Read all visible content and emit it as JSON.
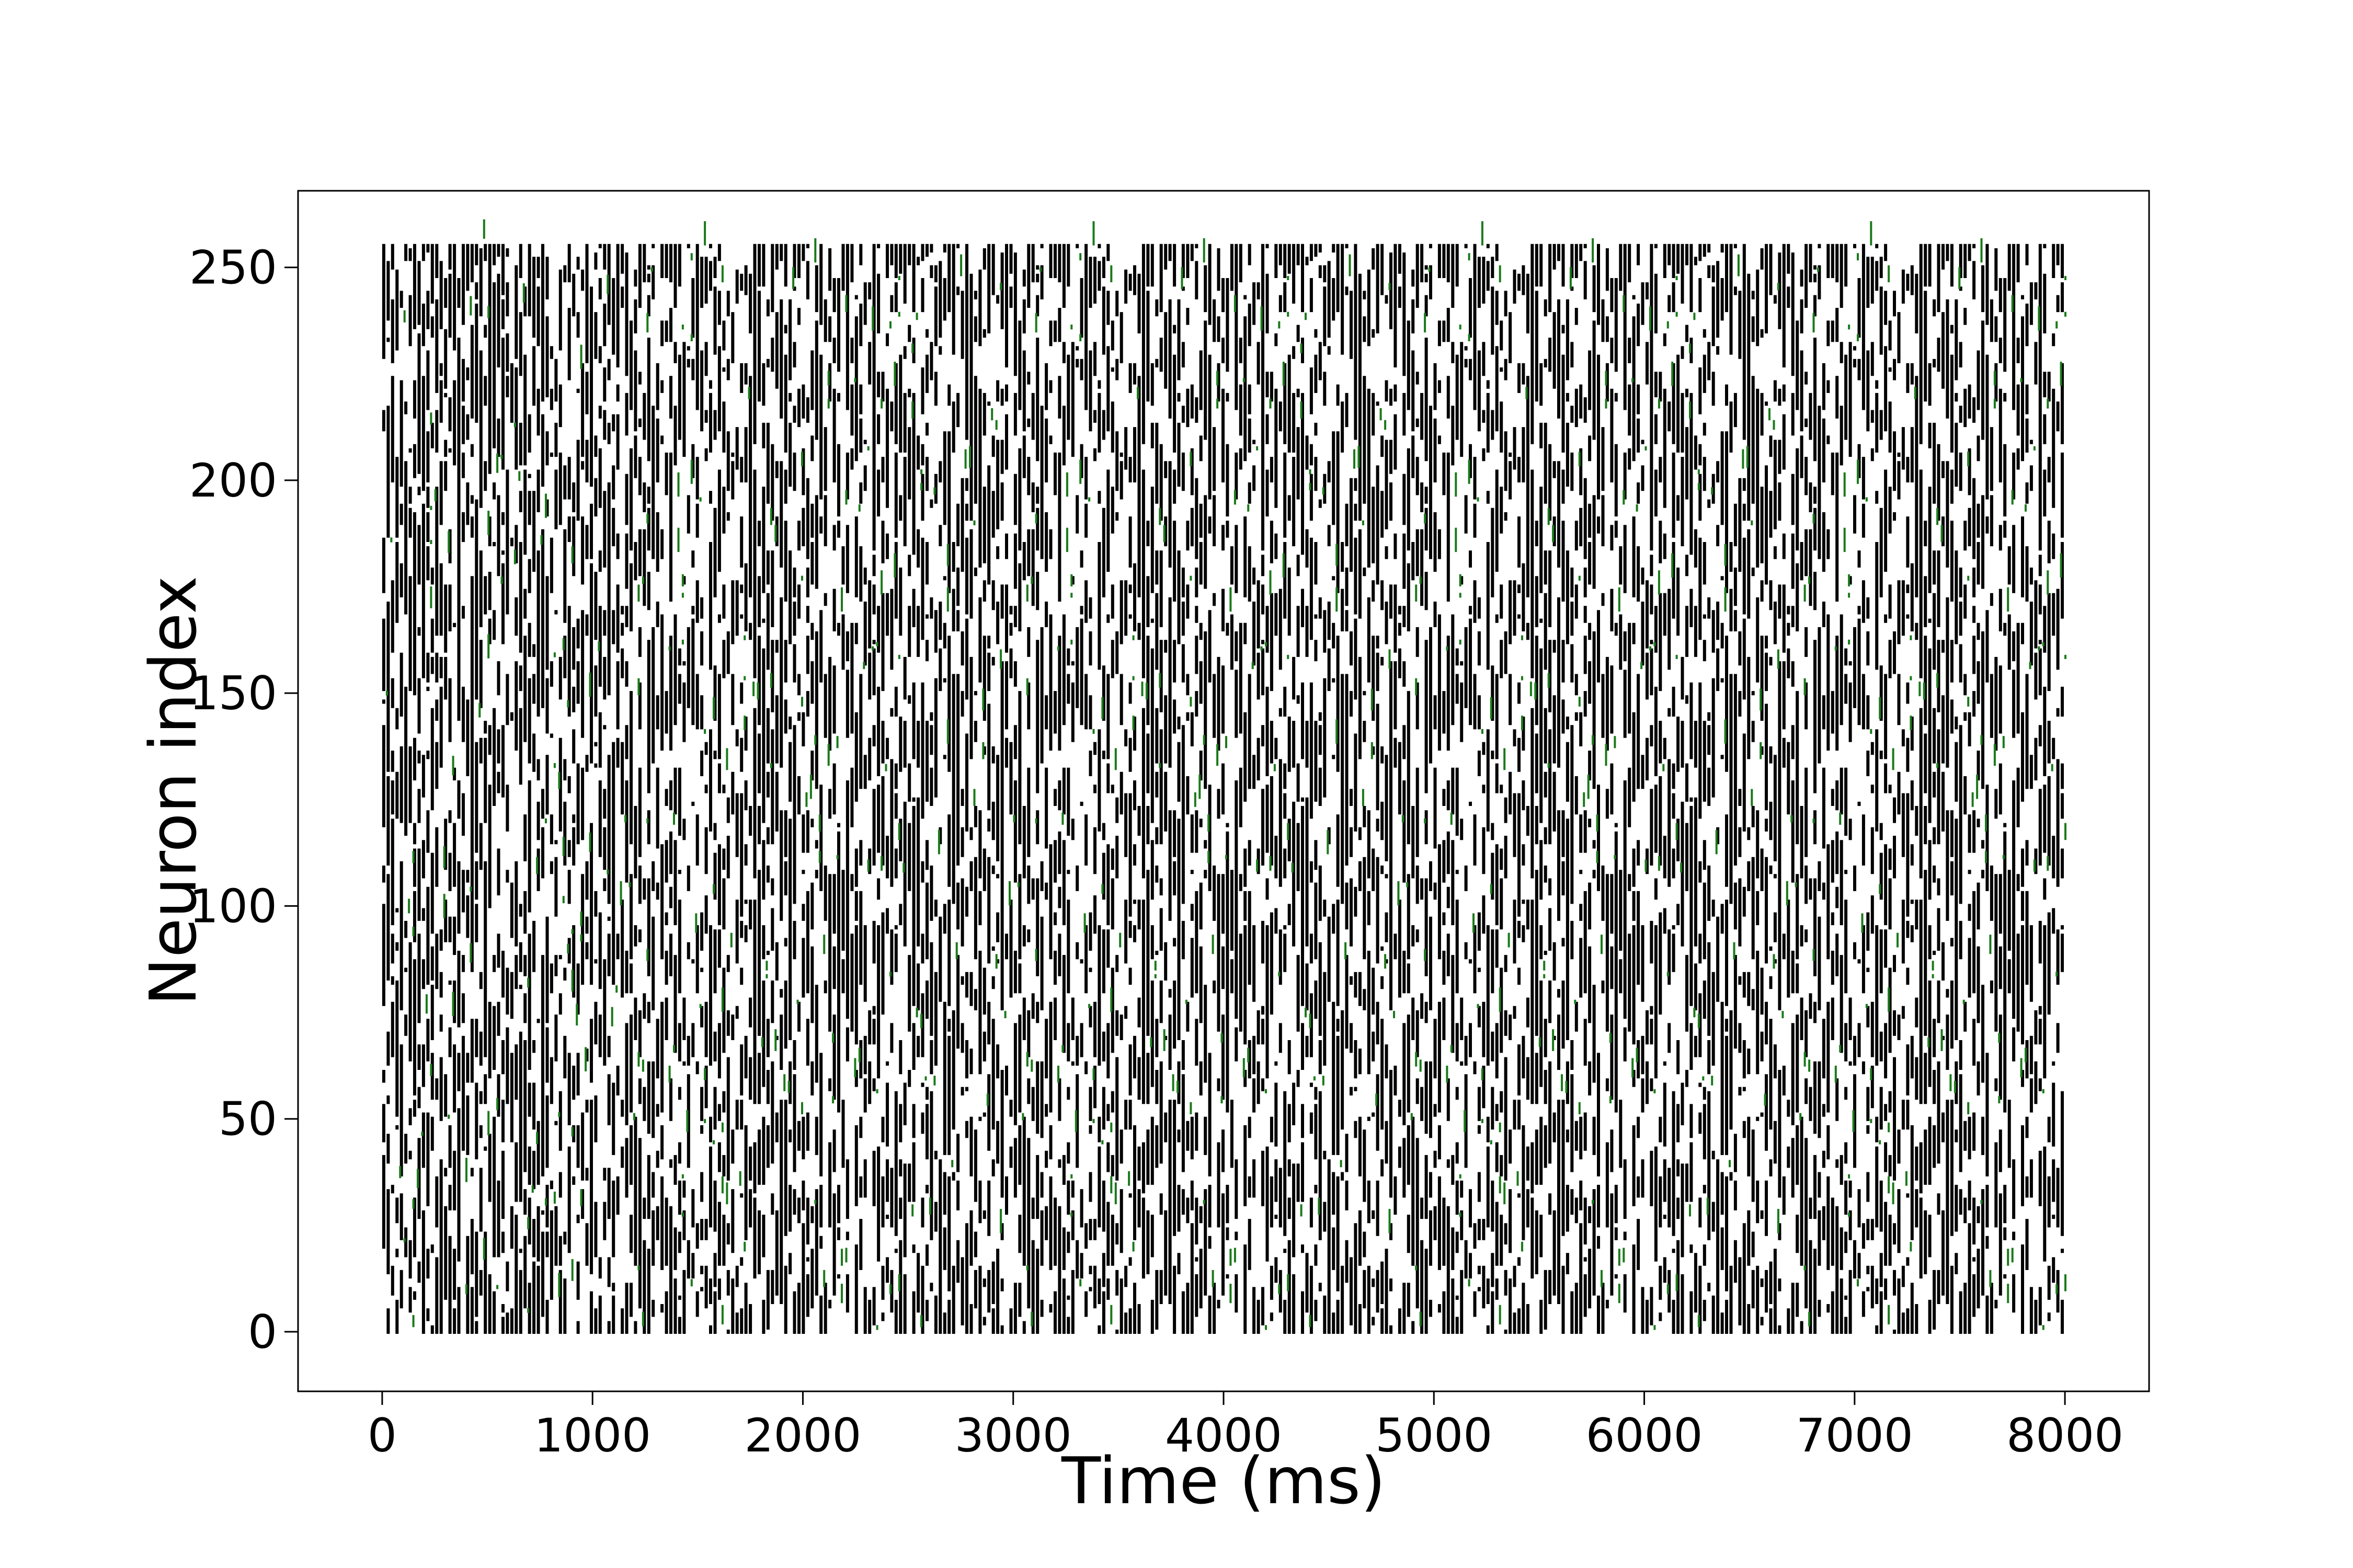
{
  "chart_data": {
    "type": "scatter",
    "subtype": "spike-raster",
    "title": "",
    "xlabel": "Time (ms)",
    "ylabel": "Neuron index",
    "xlim": [
      -400,
      8400
    ],
    "ylim": [
      -14,
      268
    ],
    "xticks": [
      0,
      1000,
      2000,
      3000,
      4000,
      5000,
      6000,
      7000,
      8000
    ],
    "xtick_labels": [
      "0",
      "1000",
      "2000",
      "3000",
      "4000",
      "5000",
      "6000",
      "7000",
      "8000"
    ],
    "yticks": [
      0,
      50,
      100,
      150,
      200,
      250
    ],
    "ytick_labels": [
      "0",
      "50",
      "100",
      "150",
      "200",
      "250"
    ],
    "grid": false,
    "legend": "none",
    "neurons": 256,
    "time_range_ms": [
      0,
      8000
    ],
    "series": [
      {
        "role": "spikes",
        "color": "#000000"
      },
      {
        "role": "spikes-secondary",
        "color": "#1a7a1a"
      }
    ]
  }
}
